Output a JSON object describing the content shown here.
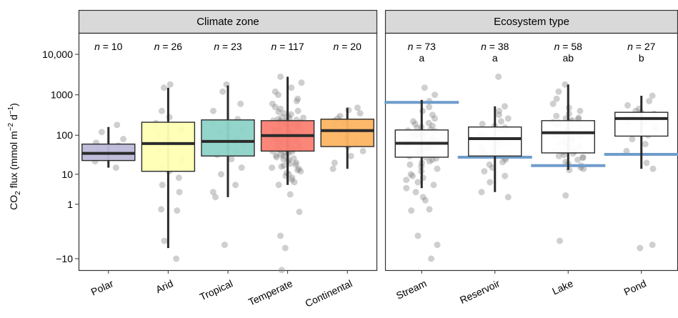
{
  "chart_data": [
    {
      "type": "box",
      "panel": "Climate zone",
      "ylabel_parts": [
        "CO",
        "2",
        " flux (mmol m",
        "−2",
        " d",
        "−1",
        ")"
      ],
      "y_scale": "pseudo-log (symmetric log)",
      "y_ticks": [
        {
          "value": 10000,
          "label": "10,000"
        },
        {
          "value": 1000,
          "label": "1000"
        },
        {
          "value": 100,
          "label": "100"
        },
        {
          "value": 10,
          "label": "10"
        },
        {
          "value": 1,
          "label": "1"
        },
        {
          "value": -10,
          "label": "−10"
        }
      ],
      "categories": [
        {
          "name": "Polar",
          "n_label": "n = 10",
          "color": "#bebada",
          "q1": 23,
          "median": 35,
          "q3": 60,
          "whisker_low": 15,
          "whisker_high": 160,
          "points": [
            15,
            22,
            28,
            35,
            42,
            55,
            65,
            80,
            120,
            180
          ]
        },
        {
          "name": "Arid",
          "n_label": "n = 26",
          "color": "#ffffb3",
          "q1": 12,
          "median": 62,
          "q3": 210,
          "whisker_low": -5,
          "whisker_high": 1500,
          "points": [
            1800,
            1500,
            400,
            280,
            200,
            170,
            130,
            100,
            80,
            60,
            45,
            35,
            25,
            20,
            15,
            12,
            8,
            5,
            3,
            0.5,
            0.4,
            -3,
            -10,
            150,
            90,
            70
          ]
        },
        {
          "name": "Tropical",
          "n_label": "n = 23",
          "color": "#8dd3c7",
          "q1": 30,
          "median": 70,
          "q3": 240,
          "whisker_low": 2,
          "whisker_high": 1700,
          "points": [
            1800,
            1200,
            600,
            400,
            250,
            200,
            160,
            120,
            100,
            85,
            70,
            60,
            50,
            40,
            32,
            25,
            15,
            10,
            5,
            3,
            2,
            -4,
            140
          ]
        },
        {
          "name": "Temperate",
          "n_label": "n = 117",
          "color": "#fb8072",
          "q1": 40,
          "median": 98,
          "q3": 230,
          "whisker_low": 5,
          "whisker_high": 2800,
          "points": [
            2800,
            2000,
            1500,
            1200,
            1000,
            800,
            700,
            600,
            500,
            450,
            400,
            380,
            350,
            330,
            300,
            280,
            270,
            260,
            250,
            240,
            235,
            230,
            225,
            220,
            215,
            210,
            205,
            200,
            195,
            190,
            185,
            180,
            175,
            170,
            165,
            160,
            155,
            150,
            145,
            140,
            135,
            130,
            125,
            120,
            118,
            115,
            112,
            110,
            108,
            105,
            102,
            100,
            98,
            96,
            94,
            92,
            90,
            88,
            86,
            84,
            82,
            80,
            78,
            76,
            74,
            72,
            70,
            68,
            66,
            64,
            62,
            60,
            58,
            56,
            54,
            52,
            50,
            48,
            46,
            44,
            42,
            40,
            39,
            38,
            36,
            35,
            33,
            31,
            30,
            28,
            26,
            25,
            24,
            22,
            20,
            19,
            18,
            17,
            16,
            15,
            14,
            13,
            12,
            11,
            10,
            9,
            8,
            7,
            6,
            5,
            2.5,
            0.3,
            -2,
            -5,
            -25,
            45,
            65
          ]
        },
        {
          "name": "Continental",
          "n_label": "n = 20",
          "color": "#fdb462",
          "q1": 52,
          "median": 130,
          "q3": 250,
          "whisker_low": 14,
          "whisker_high": 480,
          "points": [
            480,
            420,
            350,
            300,
            260,
            230,
            200,
            170,
            150,
            135,
            125,
            110,
            95,
            80,
            65,
            52,
            40,
            30,
            20,
            14
          ]
        }
      ]
    },
    {
      "type": "box",
      "panel": "Ecosystem type",
      "y_scale": "pseudo-log (symmetric log)",
      "categories": [
        {
          "name": "Stream",
          "n_label": "n = 73",
          "letter": "a",
          "color": "#ffffff",
          "q1": 28,
          "median": 63,
          "q3": 135,
          "whisker_low": 4,
          "whisker_high": 750,
          "reference": 650,
          "points": [
            1500,
            1000,
            700,
            500,
            400,
            320,
            260,
            220,
            190,
            170,
            150,
            140,
            130,
            125,
            120,
            115,
            110,
            105,
            100,
            95,
            90,
            85,
            80,
            76,
            72,
            68,
            65,
            62,
            60,
            57,
            54,
            51,
            48,
            45,
            42,
            40,
            38,
            36,
            34,
            32,
            30,
            28,
            26,
            24,
            22,
            20,
            18,
            16,
            14,
            12,
            10,
            9,
            8,
            7,
            6,
            5,
            4,
            3,
            2,
            1.5,
            0.5,
            0.4,
            -2,
            -4,
            -10,
            200,
            160,
            110,
            88,
            70,
            58,
            46,
            33
          ]
        },
        {
          "name": "Reservoir",
          "n_label": "n = 38",
          "letter": "a",
          "color": "#ffffff",
          "q1": 30,
          "median": 82,
          "q3": 160,
          "whisker_low": 3,
          "whisker_high": 520,
          "reference": 28,
          "points": [
            2800,
            520,
            400,
            320,
            260,
            220,
            190,
            170,
            155,
            140,
            125,
            110,
            100,
            92,
            85,
            80,
            75,
            70,
            65,
            60,
            55,
            50,
            46,
            42,
            38,
            35,
            32,
            30,
            27,
            24,
            21,
            18,
            15,
            12,
            9,
            6,
            3,
            2
          ]
        },
        {
          "name": "Lake",
          "n_label": "n = 58",
          "letter": "ab",
          "color": "#ffffff",
          "q1": 36,
          "median": 115,
          "q3": 230,
          "whisker_low": 13,
          "whisker_high": 1800,
          "reference": 17,
          "points": [
            1800,
            1200,
            800,
            600,
            480,
            400,
            340,
            300,
            270,
            250,
            235,
            220,
            205,
            190,
            175,
            160,
            150,
            140,
            130,
            122,
            115,
            108,
            100,
            94,
            88,
            82,
            76,
            70,
            65,
            60,
            55,
            50,
            46,
            42,
            38,
            35,
            32,
            30,
            27,
            24,
            21,
            19,
            17,
            15,
            14,
            13,
            2.3,
            -3,
            260,
            210,
            180,
            125,
            96,
            84,
            62,
            48,
            40,
            28
          ]
        },
        {
          "name": "Pond",
          "n_label": "n = 27",
          "letter": "b",
          "color": "#ffffff",
          "q1": 95,
          "median": 260,
          "q3": 370,
          "whisker_low": 14,
          "whisker_high": 950,
          "reference": 33,
          "points": [
            950,
            700,
            550,
            450,
            400,
            370,
            340,
            310,
            290,
            270,
            255,
            240,
            220,
            200,
            180,
            160,
            140,
            120,
            100,
            80,
            60,
            40,
            20,
            14,
            -4,
            -5,
            300
          ]
        }
      ]
    }
  ]
}
